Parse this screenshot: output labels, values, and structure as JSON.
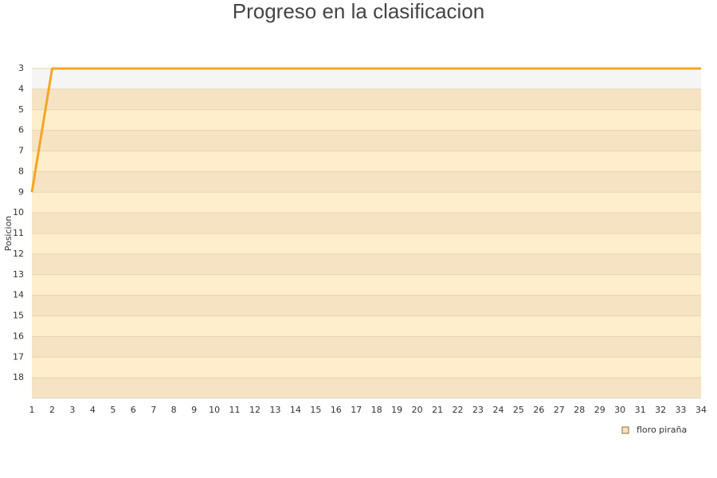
{
  "chart_data": {
    "type": "line",
    "title": "Progreso en la clasificacion",
    "y_label": "Posicion",
    "x": [
      1,
      2,
      3,
      4,
      5,
      6,
      7,
      8,
      9,
      10,
      11,
      12,
      13,
      14,
      15,
      16,
      17,
      18,
      19,
      20,
      21,
      22,
      23,
      24,
      25,
      26,
      27,
      28,
      29,
      30,
      31,
      32,
      33,
      34
    ],
    "series": [
      {
        "name": "floro piraña",
        "color": "#f5a623",
        "values": [
          9,
          3,
          3,
          3,
          3,
          3,
          3,
          3,
          3,
          3,
          3,
          3,
          3,
          3,
          3,
          3,
          3,
          3,
          3,
          3,
          3,
          3,
          3,
          3,
          3,
          3,
          3,
          3,
          3,
          3,
          3,
          3,
          3,
          3
        ]
      }
    ],
    "xlim": [
      1,
      34
    ],
    "xticks": [
      1,
      2,
      3,
      4,
      5,
      6,
      7,
      8,
      9,
      10,
      11,
      12,
      13,
      14,
      15,
      16,
      17,
      18,
      19,
      20,
      21,
      22,
      23,
      24,
      25,
      26,
      27,
      28,
      29,
      30,
      31,
      32,
      33,
      34
    ],
    "ylim": [
      3,
      19
    ],
    "yticks": [
      3,
      4,
      5,
      6,
      7,
      8,
      9,
      10,
      11,
      12,
      13,
      14,
      15,
      16,
      17,
      18
    ],
    "y_inverted": true,
    "grid": true,
    "legend": "bottom-right"
  }
}
